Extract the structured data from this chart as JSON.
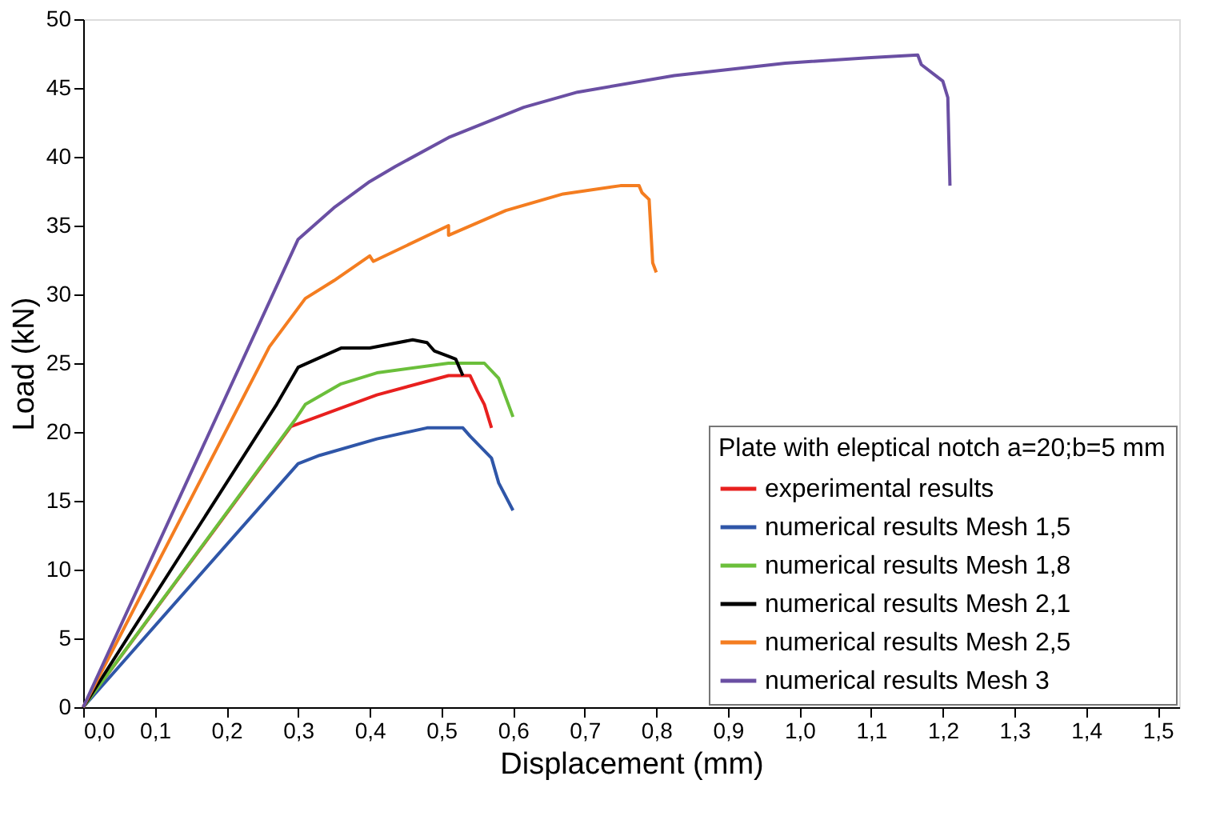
{
  "chart_data": {
    "type": "line",
    "xlabel": "Displacement (mm)",
    "ylabel": "Load (kN)",
    "legend_title": "Plate with eleptical notch a=20;b=5 mm",
    "legend": "bottom right",
    "grid": false,
    "marker": "none",
    "line_style": "solid",
    "xlim": [
      0,
      1.53
    ],
    "ylim": [
      0,
      50
    ],
    "xticks": [
      {
        "value": 0,
        "label": "0,0"
      },
      {
        "value": 0.1,
        "label": "0,1"
      },
      {
        "value": 0.2,
        "label": "0,2"
      },
      {
        "value": 0.3,
        "label": "0,3"
      },
      {
        "value": 0.4,
        "label": "0,4"
      },
      {
        "value": 0.5,
        "label": "0,5"
      },
      {
        "value": 0.6,
        "label": "0,6"
      },
      {
        "value": 0.7,
        "label": "0,7"
      },
      {
        "value": 0.8,
        "label": "0,8"
      },
      {
        "value": 0.9,
        "label": "0,9"
      },
      {
        "value": 1.0,
        "label": "1,0"
      },
      {
        "value": 1.1,
        "label": "1,1"
      },
      {
        "value": 1.2,
        "label": "1,2"
      },
      {
        "value": 1.3,
        "label": "1,3"
      },
      {
        "value": 1.4,
        "label": "1,4"
      },
      {
        "value": 1.5,
        "label": "1,5"
      }
    ],
    "yticks": [
      0,
      5,
      10,
      15,
      20,
      25,
      30,
      35,
      40,
      45,
      50
    ],
    "series": [
      {
        "name": "experimental results",
        "color": "#e8201f",
        "x": [
          0,
          0.29,
          0.41,
          0.51,
          0.54,
          0.55,
          0.56,
          0.57
        ],
        "values": [
          0,
          20.4,
          22.7,
          24.1,
          24.1,
          23.0,
          22.0,
          20.3
        ]
      },
      {
        "name": "numerical results Mesh 1,5",
        "color": "#2f56a8",
        "x": [
          0,
          0.3,
          0.33,
          0.41,
          0.48,
          0.53,
          0.54,
          0.57,
          0.58,
          0.6
        ],
        "values": [
          0,
          17.7,
          18.3,
          19.5,
          20.3,
          20.3,
          19.7,
          18.1,
          16.3,
          14.3
        ]
      },
      {
        "name": "numerical results Mesh 1,8",
        "color": "#6bbf3b",
        "x": [
          0,
          0.296,
          0.31,
          0.36,
          0.41,
          0.51,
          0.56,
          0.58,
          0.6
        ],
        "values": [
          0,
          20.9,
          22.0,
          23.5,
          24.3,
          25.0,
          25.0,
          23.9,
          21.1
        ]
      },
      {
        "name": "numerical results Mesh 2,1",
        "color": "#000000",
        "x": [
          0,
          0.27,
          0.3,
          0.36,
          0.4,
          0.46,
          0.48,
          0.49,
          0.51,
          0.52,
          0.53
        ],
        "values": [
          0,
          22.0,
          24.7,
          26.1,
          26.1,
          26.7,
          26.5,
          25.9,
          25.5,
          25.3,
          24.1
        ]
      },
      {
        "name": "numerical results Mesh 2,5",
        "color": "#f47d20",
        "x": [
          0,
          0.26,
          0.31,
          0.35,
          0.4,
          0.405,
          0.51,
          0.51,
          0.59,
          0.67,
          0.75,
          0.776,
          0.78,
          0.79,
          0.795,
          0.8
        ],
        "values": [
          0,
          26.2,
          29.7,
          31.0,
          32.8,
          32.4,
          35.0,
          34.3,
          36.1,
          37.3,
          37.9,
          37.9,
          37.4,
          36.9,
          32.3,
          31.6
        ]
      },
      {
        "name": "numerical results Mesh 3",
        "color": "#6a4fa3",
        "x": [
          0,
          0.3,
          0.35,
          0.4,
          0.436,
          0.51,
          0.615,
          0.69,
          0.825,
          0.98,
          1.095,
          1.165,
          1.17,
          1.2,
          1.207,
          1.21
        ],
        "values": [
          0,
          34.0,
          36.3,
          38.2,
          39.3,
          41.4,
          43.6,
          44.7,
          45.9,
          46.8,
          47.2,
          47.4,
          46.7,
          45.5,
          44.3,
          37.9
        ]
      }
    ]
  }
}
